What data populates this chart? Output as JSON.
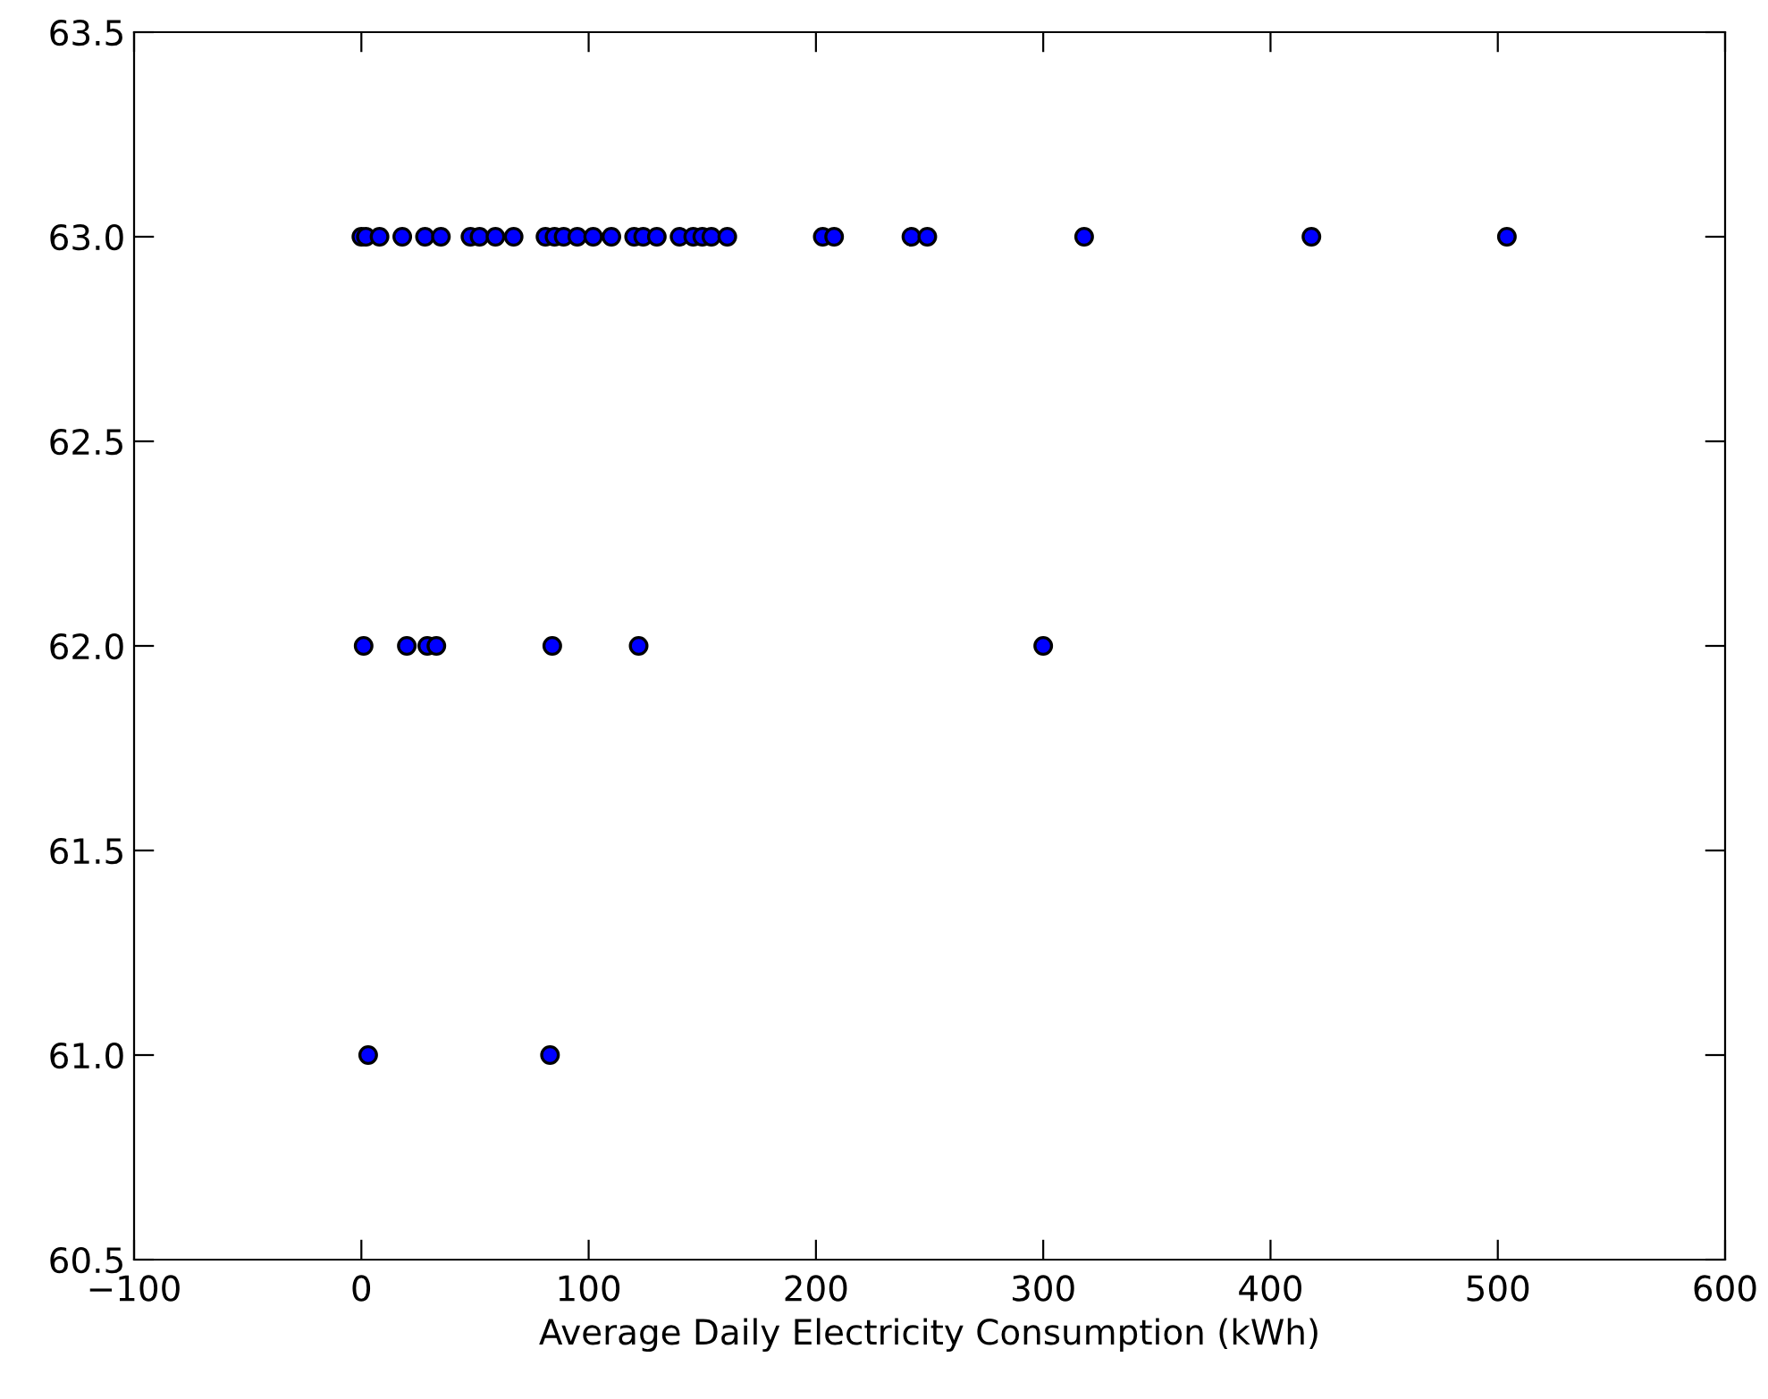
{
  "chart_data": {
    "type": "scatter",
    "xlabel": "Average Daily Electricity Consumption (kWh)",
    "marker": "circle",
    "grid": false,
    "legend": false,
    "xlim": [
      -100,
      600
    ],
    "xticks": [
      {
        "value": -100,
        "label": "−100"
      },
      0,
      100,
      200,
      300,
      400,
      500,
      600
    ],
    "ylim": [
      60.5,
      63.5
    ],
    "yticks": [
      {
        "value": 60.5,
        "label": "60.5"
      },
      {
        "value": 61,
        "label": "61.0"
      },
      {
        "value": 61.5,
        "label": "61.5"
      },
      {
        "value": 62,
        "label": "62.0"
      },
      {
        "value": 62.5,
        "label": "62.5"
      },
      {
        "value": 63,
        "label": "63.0"
      },
      {
        "value": 63.5,
        "label": "63.5"
      }
    ],
    "series": [
      {
        "color": "#0000ff",
        "x": [
          0,
          2,
          8,
          18,
          28,
          35,
          48,
          52,
          59,
          67,
          81,
          85,
          89,
          95,
          102,
          110,
          120,
          124,
          130,
          140,
          146,
          150,
          154,
          161,
          203,
          208,
          242,
          249,
          318,
          418,
          504,
          1,
          20,
          29,
          33,
          84,
          122,
          300,
          3,
          83
        ],
        "values": [
          63,
          63,
          63,
          63,
          63,
          63,
          63,
          63,
          63,
          63,
          63,
          63,
          63,
          63,
          63,
          63,
          63,
          63,
          63,
          63,
          63,
          63,
          63,
          63,
          63,
          63,
          63,
          63,
          63,
          63,
          63,
          62,
          62,
          62,
          62,
          62,
          62,
          62,
          61,
          61
        ]
      }
    ]
  }
}
